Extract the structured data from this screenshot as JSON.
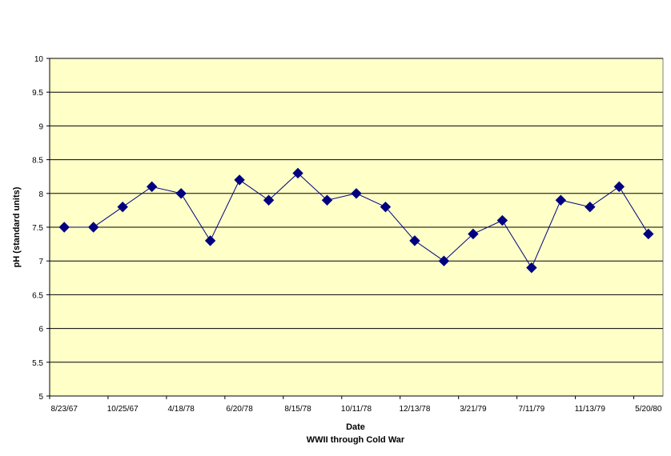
{
  "chart_data": {
    "type": "line",
    "xlabel": "Date",
    "xlabel_sub": "WWII through Cold War",
    "ylabel": "pH (standard units)",
    "ylim": [
      5,
      10
    ],
    "ytick_step": 0.5,
    "y_ticks": [
      "5",
      "5.5",
      "6",
      "6.5",
      "7",
      "7.5",
      "8",
      "8.5",
      "9",
      "9.5",
      "10"
    ],
    "x_tick_labels": [
      "8/23/67",
      "10/25/67",
      "4/18/78",
      "6/20/78",
      "8/15/78",
      "10/11/78",
      "12/13/78",
      "3/21/79",
      "7/11/79",
      "11/13/79",
      "5/20/80"
    ],
    "grid": true,
    "legend": false,
    "colors": {
      "plot_background": "#ffffc8",
      "line": "#000080",
      "marker": "#000080",
      "grid": "#000000"
    },
    "series": [
      {
        "values": [
          7.5,
          7.5,
          7.8,
          8.1,
          8.0,
          7.3,
          8.2,
          7.9,
          8.3,
          7.9,
          8.0,
          7.8,
          7.3,
          7.0,
          7.4,
          7.6,
          6.9,
          7.9,
          7.8,
          8.1,
          7.4
        ]
      }
    ]
  }
}
